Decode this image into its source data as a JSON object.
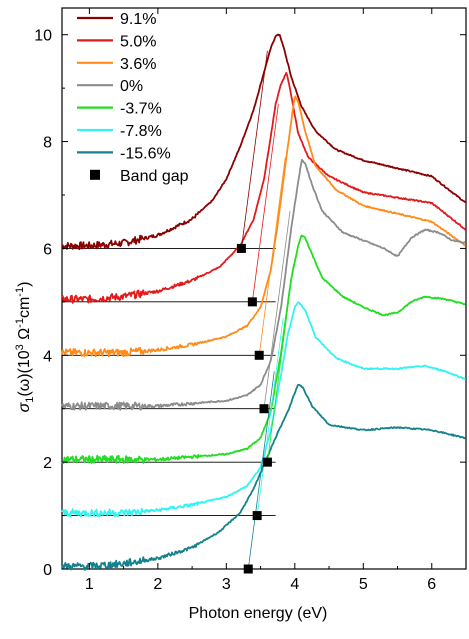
{
  "chart_data": {
    "type": "line",
    "xlabel": "Photon energy (eV)",
    "ylabel": "σ1(ω)(10³ Ω⁻¹cm⁻¹)",
    "ylabel_parts": {
      "sigma": "σ",
      "sub": "1",
      "omega_part": "(ω)(10",
      "sup3": "3",
      "ohm": " Ω",
      "sup_m1a": "-1",
      "cm": "cm",
      "sup_m1b": "-1",
      "close": ")"
    },
    "xlim": [
      0.6,
      6.5
    ],
    "ylim": [
      0,
      10.5
    ],
    "x_ticks": [
      1,
      2,
      3,
      4,
      5,
      6
    ],
    "y_ticks": [
      0,
      2,
      4,
      6,
      8,
      10
    ],
    "legend_position": "top-left",
    "series": [
      {
        "name": "9.1%",
        "color": "#8b0000",
        "offset": 6,
        "gap": 3.22,
        "points": [
          [
            0.6,
            0.05
          ],
          [
            1.0,
            0.05
          ],
          [
            1.5,
            0.1
          ],
          [
            2.0,
            0.25
          ],
          [
            2.5,
            0.55
          ],
          [
            2.8,
            0.9
          ],
          [
            3.0,
            1.3
          ],
          [
            3.2,
            1.9
          ],
          [
            3.4,
            2.6
          ],
          [
            3.55,
            3.3
          ],
          [
            3.65,
            3.75
          ],
          [
            3.72,
            3.98
          ],
          [
            3.78,
            4.0
          ],
          [
            3.85,
            3.7
          ],
          [
            3.95,
            3.2
          ],
          [
            4.1,
            2.65
          ],
          [
            4.3,
            2.2
          ],
          [
            4.6,
            1.85
          ],
          [
            5.0,
            1.65
          ],
          [
            5.5,
            1.5
          ],
          [
            6.0,
            1.35
          ],
          [
            6.5,
            0.85
          ]
        ]
      },
      {
        "name": "5.0%",
        "color": "#e31a1c",
        "offset": 5,
        "gap": 3.38,
        "points": [
          [
            0.6,
            0.05
          ],
          [
            1.0,
            0.05
          ],
          [
            1.5,
            0.1
          ],
          [
            2.0,
            0.2
          ],
          [
            2.5,
            0.4
          ],
          [
            2.9,
            0.65
          ],
          [
            3.2,
            1.05
          ],
          [
            3.4,
            1.55
          ],
          [
            3.55,
            2.3
          ],
          [
            3.65,
            3.1
          ],
          [
            3.72,
            3.7
          ],
          [
            3.8,
            4.08
          ],
          [
            3.88,
            4.3
          ],
          [
            3.95,
            3.85
          ],
          [
            4.05,
            3.15
          ],
          [
            4.2,
            2.7
          ],
          [
            4.5,
            2.35
          ],
          [
            5.0,
            2.05
          ],
          [
            5.5,
            1.95
          ],
          [
            6.0,
            1.85
          ],
          [
            6.5,
            1.35
          ]
        ]
      },
      {
        "name": "3.6%",
        "color": "#ff8c1a",
        "offset": 4,
        "gap": 3.48,
        "points": [
          [
            0.6,
            0.05
          ],
          [
            1.0,
            0.05
          ],
          [
            1.5,
            0.05
          ],
          [
            2.0,
            0.1
          ],
          [
            2.5,
            0.2
          ],
          [
            3.0,
            0.35
          ],
          [
            3.3,
            0.55
          ],
          [
            3.5,
            0.9
          ],
          [
            3.65,
            1.6
          ],
          [
            3.75,
            2.45
          ],
          [
            3.85,
            3.45
          ],
          [
            3.95,
            4.4
          ],
          [
            4.0,
            4.85
          ],
          [
            4.05,
            4.75
          ],
          [
            4.15,
            4.2
          ],
          [
            4.3,
            3.55
          ],
          [
            4.6,
            3.1
          ],
          [
            5.0,
            2.8
          ],
          [
            5.5,
            2.65
          ],
          [
            6.0,
            2.5
          ],
          [
            6.5,
            2.05
          ]
        ]
      },
      {
        "name": "0%",
        "color": "#8c8c8c",
        "offset": 3,
        "gap": 3.55,
        "points": [
          [
            0.6,
            0.05
          ],
          [
            1.0,
            0.05
          ],
          [
            1.5,
            0.05
          ],
          [
            2.0,
            0.05
          ],
          [
            2.5,
            0.1
          ],
          [
            3.0,
            0.15
          ],
          [
            3.3,
            0.25
          ],
          [
            3.5,
            0.45
          ],
          [
            3.65,
            0.9
          ],
          [
            3.8,
            1.9
          ],
          [
            3.95,
            3.4
          ],
          [
            4.05,
            4.25
          ],
          [
            4.1,
            4.65
          ],
          [
            4.15,
            4.6
          ],
          [
            4.25,
            4.2
          ],
          [
            4.4,
            3.7
          ],
          [
            4.7,
            3.3
          ],
          [
            5.0,
            3.15
          ],
          [
            5.3,
            3.0
          ],
          [
            5.5,
            2.85
          ],
          [
            5.7,
            3.2
          ],
          [
            5.9,
            3.35
          ],
          [
            6.1,
            3.3
          ],
          [
            6.3,
            3.15
          ],
          [
            6.5,
            3.1
          ]
        ]
      },
      {
        "name": "-3.7%",
        "color": "#22dd22",
        "offset": 2,
        "gap": 3.6,
        "points": [
          [
            0.6,
            0.05
          ],
          [
            1.0,
            0.05
          ],
          [
            1.5,
            0.05
          ],
          [
            2.0,
            0.05
          ],
          [
            2.5,
            0.1
          ],
          [
            3.0,
            0.15
          ],
          [
            3.3,
            0.25
          ],
          [
            3.5,
            0.45
          ],
          [
            3.65,
            0.95
          ],
          [
            3.8,
            2.05
          ],
          [
            3.95,
            3.45
          ],
          [
            4.05,
            4.05
          ],
          [
            4.1,
            4.25
          ],
          [
            4.15,
            4.2
          ],
          [
            4.25,
            3.9
          ],
          [
            4.4,
            3.45
          ],
          [
            4.7,
            3.1
          ],
          [
            5.0,
            2.9
          ],
          [
            5.3,
            2.75
          ],
          [
            5.5,
            2.8
          ],
          [
            5.7,
            3.0
          ],
          [
            5.9,
            3.1
          ],
          [
            6.2,
            3.05
          ],
          [
            6.5,
            2.95
          ]
        ]
      },
      {
        "name": "-7.8%",
        "color": "#33f2f2",
        "offset": 1,
        "gap": 3.45,
        "points": [
          [
            0.6,
            0.05
          ],
          [
            1.0,
            0.05
          ],
          [
            1.5,
            0.05
          ],
          [
            2.0,
            0.1
          ],
          [
            2.5,
            0.2
          ],
          [
            3.0,
            0.35
          ],
          [
            3.3,
            0.55
          ],
          [
            3.5,
            0.9
          ],
          [
            3.65,
            1.6
          ],
          [
            3.8,
            2.65
          ],
          [
            3.9,
            3.4
          ],
          [
            4.0,
            3.9
          ],
          [
            4.05,
            4.0
          ],
          [
            4.15,
            3.85
          ],
          [
            4.3,
            3.35
          ],
          [
            4.6,
            2.95
          ],
          [
            5.0,
            2.75
          ],
          [
            5.5,
            2.75
          ],
          [
            5.9,
            2.8
          ],
          [
            6.2,
            2.7
          ],
          [
            6.5,
            2.55
          ]
        ]
      },
      {
        "name": "-15.6%",
        "color": "#14828c",
        "offset": 0,
        "gap": 3.32,
        "points": [
          [
            0.6,
            0.05
          ],
          [
            1.0,
            0.05
          ],
          [
            1.5,
            0.1
          ],
          [
            2.0,
            0.2
          ],
          [
            2.5,
            0.4
          ],
          [
            2.9,
            0.7
          ],
          [
            3.2,
            1.05
          ],
          [
            3.4,
            1.5
          ],
          [
            3.6,
            2.1
          ],
          [
            3.75,
            2.55
          ],
          [
            3.9,
            2.95
          ],
          [
            4.0,
            3.3
          ],
          [
            4.05,
            3.45
          ],
          [
            4.12,
            3.4
          ],
          [
            4.25,
            3.05
          ],
          [
            4.5,
            2.7
          ],
          [
            5.0,
            2.6
          ],
          [
            5.5,
            2.65
          ],
          [
            6.0,
            2.6
          ],
          [
            6.5,
            2.45
          ]
        ]
      }
    ],
    "band_gap_legend": "Band gap"
  }
}
